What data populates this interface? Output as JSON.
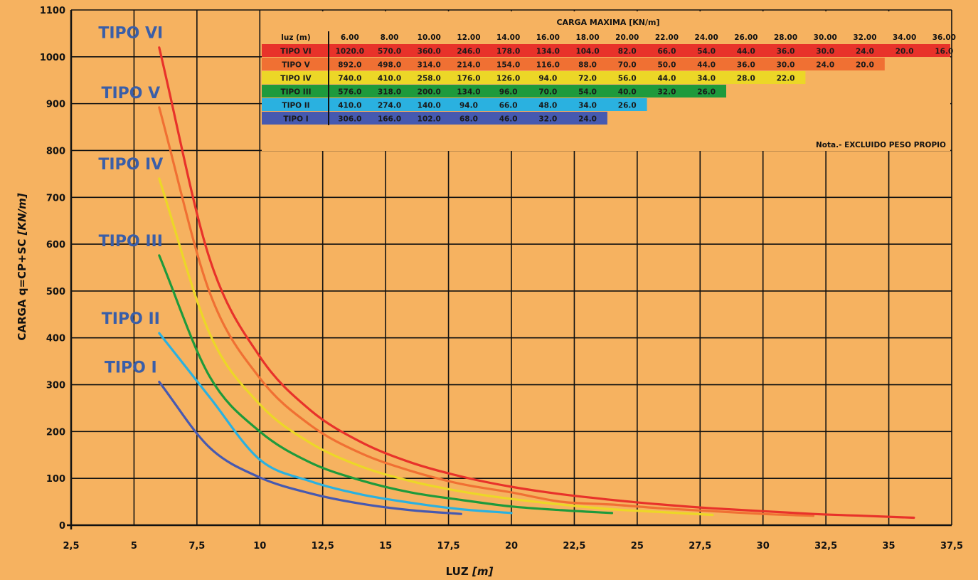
{
  "chart_data": {
    "type": "line",
    "xlabel": "LUZ",
    "xlabel_unit": "[m]",
    "ylabel": "CARGA q=CP+SC",
    "ylabel_unit": "[KN/m]",
    "xlim": [
      2.5,
      37.5
    ],
    "ylim": [
      0,
      1100
    ],
    "x_ticks": [
      "2,5",
      "5",
      "7,5",
      "10",
      "12,5",
      "15",
      "17,5",
      "20",
      "22,5",
      "25",
      "27,5",
      "30",
      "32,5",
      "35",
      "37,5"
    ],
    "y_ticks": [
      "0",
      "100",
      "200",
      "300",
      "400",
      "500",
      "600",
      "700",
      "800",
      "900",
      "1000",
      "1100"
    ],
    "grid": true,
    "series": [
      {
        "name": "TIPO VI",
        "color": "#e8322a",
        "x": [
          6,
          8,
          10,
          12,
          14,
          16,
          18,
          20,
          22,
          24,
          26,
          28,
          30,
          32,
          34,
          36
        ],
        "values": [
          1020,
          570,
          360,
          246,
          178,
          134,
          104,
          82,
          66,
          54,
          44,
          36,
          30,
          24,
          20,
          16
        ]
      },
      {
        "name": "TIPO V",
        "color": "#f07033",
        "x": [
          6,
          8,
          10,
          12,
          14,
          16,
          18,
          20,
          22,
          24,
          26,
          28,
          30,
          32
        ],
        "values": [
          892,
          498,
          314,
          214,
          154,
          116,
          88,
          70,
          50,
          44,
          36,
          30,
          24,
          20
        ]
      },
      {
        "name": "TIPO IV",
        "color": "#ecd727",
        "x": [
          6,
          8,
          10,
          12,
          14,
          16,
          18,
          20,
          22,
          24,
          26,
          28
        ],
        "values": [
          740,
          410,
          258,
          176,
          126,
          94,
          72,
          56,
          44,
          34,
          28,
          22
        ]
      },
      {
        "name": "TIPO III",
        "color": "#1e9a3c",
        "x": [
          6,
          8,
          10,
          12,
          14,
          16,
          18,
          20,
          22,
          24
        ],
        "values": [
          576,
          318,
          200,
          134,
          96,
          70,
          54,
          40,
          32,
          26
        ]
      },
      {
        "name": "TIPO II",
        "color": "#2ab1e0",
        "x": [
          6,
          8,
          10,
          12,
          14,
          16,
          18,
          20
        ],
        "values": [
          410,
          274,
          140,
          94,
          66,
          48,
          34,
          26
        ]
      },
      {
        "name": "TIPO I",
        "color": "#4659b0",
        "x": [
          6,
          8,
          10,
          12,
          14,
          16,
          18
        ],
        "values": [
          306,
          166,
          102,
          68,
          46,
          32,
          24
        ]
      }
    ],
    "table": {
      "title": "CARGA MAXIMA [KN/m]",
      "header_label": "luz (m)",
      "columns": [
        "6.00",
        "8.00",
        "10.00",
        "12.00",
        "14.00",
        "16.00",
        "18.00",
        "20.00",
        "22.00",
        "24.00",
        "26.00",
        "28.00",
        "30.00",
        "32.00",
        "34.00",
        "36.00"
      ],
      "rows": [
        {
          "name": "TIPO VI",
          "color": "#e8322a",
          "values": [
            "1020.0",
            "570.0",
            "360.0",
            "246.0",
            "178.0",
            "134.0",
            "104.0",
            "82.0",
            "66.0",
            "54.0",
            "44.0",
            "36.0",
            "30.0",
            "24.0",
            "20.0",
            "16.0"
          ]
        },
        {
          "name": "TIPO V",
          "color": "#f07033",
          "values": [
            "892.0",
            "498.0",
            "314.0",
            "214.0",
            "154.0",
            "116.0",
            "88.0",
            "70.0",
            "50.0",
            "44.0",
            "36.0",
            "30.0",
            "24.0",
            "20.0"
          ]
        },
        {
          "name": "TIPO IV",
          "color": "#ecd727",
          "values": [
            "740.0",
            "410.0",
            "258.0",
            "176.0",
            "126.0",
            "94.0",
            "72.0",
            "56.0",
            "44.0",
            "34.0",
            "28.0",
            "22.0"
          ]
        },
        {
          "name": "TIPO III",
          "color": "#1e9a3c",
          "values": [
            "576.0",
            "318.0",
            "200.0",
            "134.0",
            "96.0",
            "70.0",
            "54.0",
            "40.0",
            "32.0",
            "26.0"
          ]
        },
        {
          "name": "TIPO II",
          "color": "#2ab1e0",
          "values": [
            "410.0",
            "274.0",
            "140.0",
            "94.0",
            "66.0",
            "48.0",
            "34.0",
            "26.0"
          ]
        },
        {
          "name": "TIPO I",
          "color": "#4659b0",
          "values": [
            "306.0",
            "166.0",
            "102.0",
            "68.0",
            "46.0",
            "32.0",
            "24.0"
          ]
        }
      ],
      "note": "Nota.- EXCLUIDO PESO PROPIO"
    },
    "colors": {
      "background": "#f6b260",
      "grid": "#111111"
    }
  }
}
